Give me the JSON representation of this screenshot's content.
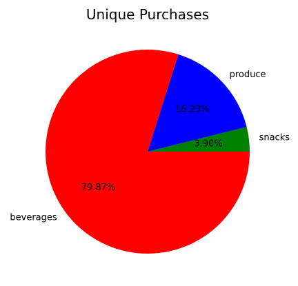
{
  "chart_data": {
    "type": "pie",
    "title": "Unique Purchases",
    "categories": [
      "snacks",
      "produce",
      "beverages"
    ],
    "values": [
      3.9,
      16.23,
      79.87
    ],
    "percent_labels": [
      "3.90%",
      "16.23%",
      "79.87%"
    ],
    "colors": [
      "#008000",
      "#0000ff",
      "#ff0000"
    ],
    "start_angle_deg": 0,
    "direction": "counterclockwise"
  }
}
